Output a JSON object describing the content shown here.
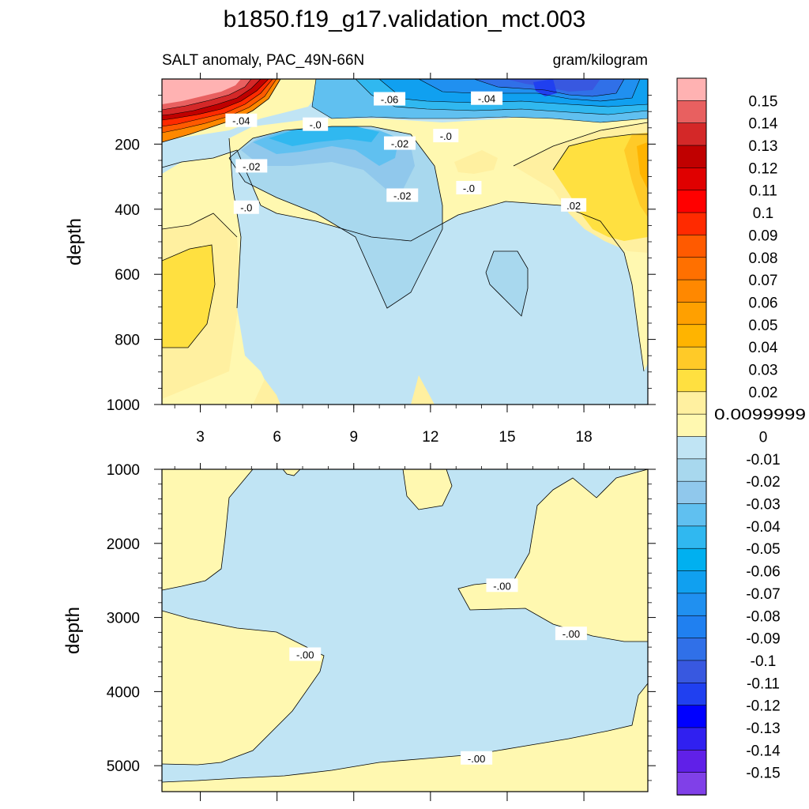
{
  "figure": {
    "title": "b1850.f19_g17.validation_mct.003",
    "subtitle_left": "SALT anomaly, PAC_49N-66N",
    "subtitle_right": "gram/kilogram"
  },
  "chart_data": [
    {
      "type": "heatmap",
      "panel": "upper",
      "ylabel": "depth",
      "x_ticks": [
        3,
        6,
        9,
        12,
        15,
        18
      ],
      "y_ticks": [
        200,
        400,
        600,
        800,
        1000
      ],
      "xlim": [
        1.5,
        20.5
      ],
      "ylim": [
        1000,
        0
      ],
      "contour_labels": [
        {
          "text": "-.04",
          "x": 4.6,
          "depth": 128
        },
        {
          "text": "-.0",
          "x": 7.5,
          "depth": 140
        },
        {
          "text": "-.06",
          "x": 10.4,
          "depth": 62
        },
        {
          "text": "-.04",
          "x": 14.2,
          "depth": 60
        },
        {
          "text": "-.02",
          "x": 10.8,
          "depth": 198
        },
        {
          "text": "-.0",
          "x": 12.6,
          "depth": 175
        },
        {
          "text": "-.02",
          "x": 5.0,
          "depth": 268
        },
        {
          "text": "-.0",
          "x": 13.5,
          "depth": 335
        },
        {
          "text": "-.02",
          "x": 10.9,
          "depth": 358
        },
        {
          "text": "-.0",
          "x": 4.8,
          "depth": 395
        },
        {
          "text": ".02",
          "x": 17.6,
          "depth": 388
        }
      ]
    },
    {
      "type": "heatmap",
      "panel": "lower",
      "ylabel": "depth",
      "y_ticks": [
        1000,
        2000,
        3000,
        4000,
        5000
      ],
      "xlim": [
        1.5,
        20.5
      ],
      "ylim": [
        5350,
        1000
      ],
      "contour_labels": [
        {
          "text": "-.00",
          "x": 14.8,
          "depth": 2570
        },
        {
          "text": "-.00",
          "x": 17.5,
          "depth": 3220
        },
        {
          "text": "-.00",
          "x": 7.1,
          "depth": 3500
        },
        {
          "text": "-.00",
          "x": 13.8,
          "depth": 4900
        }
      ]
    }
  ],
  "colorbar": {
    "labels": [
      "0.15",
      "0.14",
      "0.13",
      "0.12",
      "0.11",
      "0.1",
      "0.09",
      "0.08",
      "0.07",
      "0.06",
      "0.05",
      "0.04",
      "0.03",
      "0.02",
      "0.0099999",
      "0",
      "-0.01",
      "-0.02",
      "-0.03",
      "-0.04",
      "-0.05",
      "-0.06",
      "-0.07",
      "-0.08",
      "-0.09",
      "-0.1",
      "-0.11",
      "-0.12",
      "-0.13",
      "-0.14",
      "-0.15"
    ],
    "colors": [
      "#ffb2b2",
      "#e86060",
      "#d42828",
      "#c00000",
      "#e00000",
      "#ff0000",
      "#ff2a00",
      "#ff5a00",
      "#ff7000",
      "#ff8800",
      "#ffa000",
      "#ffb400",
      "#ffca28",
      "#ffe040",
      "#fff0a0",
      "#fff8b0",
      "#c0e4f4",
      "#a8d8ee",
      "#90c8ec",
      "#60c0f0",
      "#30b8f0",
      "#00b0f0",
      "#10a0f0",
      "#2090f0",
      "#2080f0",
      "#3070e8",
      "#3858e0",
      "#2040f0",
      "#0000ff",
      "#3020f0",
      "#6020e8",
      "#8040e8"
    ]
  },
  "palette": {
    "pos01": "#fff8b0",
    "pos02": "#fff0a0",
    "pos03": "#ffe040",
    "pos04": "#ffca28",
    "pos05": "#ffb400",
    "neg01": "#c0e4f4",
    "neg02": "#a8d8ee",
    "neg03": "#90c8ec",
    "neg04": "#60c0f0",
    "neg05": "#30b8f0",
    "neg07": "#10a0f0",
    "neg08": "#2090f0",
    "neg10": "#3070e8",
    "neg11": "#3858e0",
    "neg12": "#2040f0",
    "pinkmax": "#ffb2b2",
    "red1": "#e86060",
    "red2": "#d42828",
    "red3": "#c00000",
    "red4": "#ff2a00",
    "red5": "#ff5a00",
    "red6": "#ff8800"
  }
}
